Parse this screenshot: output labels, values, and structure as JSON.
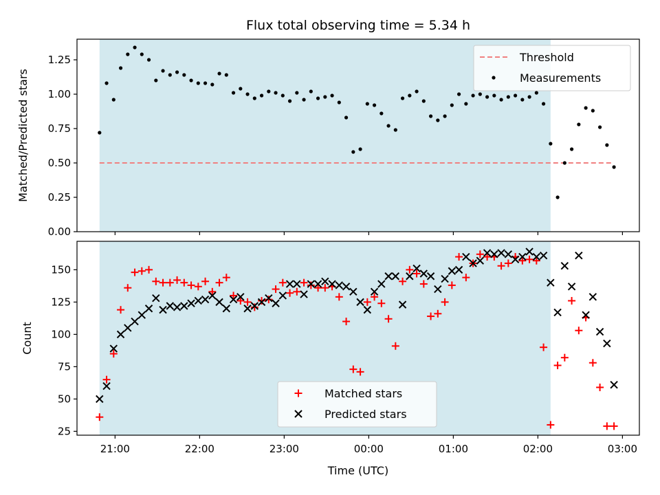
{
  "chart_data": [
    {
      "type": "scatter",
      "title": "Flux total observing time = 5.34 h",
      "xlabel": "",
      "ylabel": "Matched/Predicted stars",
      "xlim": [
        "20:33",
        "03:12"
      ],
      "ylim": [
        0.0,
        1.4
      ],
      "yticks": [
        "0.00",
        "0.25",
        "0.50",
        "0.75",
        "1.00",
        "1.25"
      ],
      "legend_position": "top-right",
      "observing_window": {
        "start": "20:49",
        "end": "02:09",
        "color": "#d3e9ef"
      },
      "threshold": {
        "name": "Threshold",
        "value": 0.5,
        "color": "#f08080",
        "x_start": "20:49",
        "x_end": "02:53"
      },
      "series": [
        {
          "name": "Measurements",
          "color": "#000000",
          "marker": "dot",
          "x": [
            "20:49",
            "20:54",
            "20:59",
            "21:04",
            "21:09",
            "21:14",
            "21:19",
            "21:24",
            "21:29",
            "21:34",
            "21:39",
            "21:44",
            "21:49",
            "21:54",
            "21:59",
            "22:04",
            "22:09",
            "22:14",
            "22:19",
            "22:24",
            "22:29",
            "22:34",
            "22:39",
            "22:44",
            "22:49",
            "22:54",
            "22:59",
            "23:04",
            "23:09",
            "23:14",
            "23:19",
            "23:24",
            "23:29",
            "23:34",
            "23:39",
            "23:44",
            "23:49",
            "23:54",
            "23:59",
            "00:04",
            "00:09",
            "00:14",
            "00:19",
            "00:24",
            "00:29",
            "00:34",
            "00:39",
            "00:44",
            "00:49",
            "00:54",
            "00:59",
            "01:04",
            "01:09",
            "01:14",
            "01:19",
            "01:24",
            "01:29",
            "01:34",
            "01:39",
            "01:44",
            "01:49",
            "01:54",
            "01:59",
            "02:04",
            "02:09",
            "02:14",
            "02:19",
            "02:24",
            "02:29",
            "02:34",
            "02:39",
            "02:44",
            "02:49",
            "02:54"
          ],
          "values": [
            0.72,
            1.08,
            0.96,
            1.19,
            1.29,
            1.34,
            1.29,
            1.25,
            1.1,
            1.17,
            1.14,
            1.16,
            1.14,
            1.1,
            1.08,
            1.08,
            1.07,
            1.15,
            1.14,
            1.01,
            1.04,
            1.0,
            0.97,
            0.99,
            1.02,
            1.01,
            0.99,
            0.95,
            1.01,
            0.96,
            1.02,
            0.97,
            0.98,
            0.99,
            0.94,
            0.83,
            0.58,
            0.6,
            0.93,
            0.92,
            0.86,
            0.77,
            0.74,
            0.97,
            0.99,
            1.02,
            0.95,
            0.84,
            0.81,
            0.84,
            0.92,
            1.0,
            0.93,
            0.99,
            1.0,
            0.98,
            0.99,
            0.96,
            0.98,
            0.99,
            0.96,
            0.98,
            1.01,
            0.93,
            0.64,
            0.25,
            0.5,
            0.6,
            0.78,
            0.9,
            0.88,
            0.76,
            0.63,
            0.47
          ]
        }
      ]
    },
    {
      "type": "scatter",
      "title": "",
      "xlabel": "Time (UTC)",
      "ylabel": "Count",
      "xlim": [
        "20:33",
        "03:12"
      ],
      "ylim": [
        22,
        172
      ],
      "yticks": [
        "25",
        "50",
        "75",
        "100",
        "125",
        "150"
      ],
      "xticks": [
        "21:00",
        "22:00",
        "23:00",
        "00:00",
        "01:00",
        "02:00",
        "03:00"
      ],
      "legend_position": "lower-center",
      "observing_window": {
        "start": "20:49",
        "end": "02:09",
        "color": "#d3e9ef"
      },
      "series": [
        {
          "name": "Matched stars",
          "color": "#ff0000",
          "marker": "plus",
          "x": [
            "20:49",
            "20:54",
            "20:59",
            "21:04",
            "21:09",
            "21:14",
            "21:19",
            "21:24",
            "21:29",
            "21:34",
            "21:39",
            "21:44",
            "21:49",
            "21:54",
            "21:59",
            "22:04",
            "22:09",
            "22:14",
            "22:19",
            "22:24",
            "22:29",
            "22:34",
            "22:39",
            "22:44",
            "22:49",
            "22:54",
            "22:59",
            "23:04",
            "23:09",
            "23:14",
            "23:19",
            "23:24",
            "23:29",
            "23:34",
            "23:39",
            "23:44",
            "23:49",
            "23:54",
            "23:59",
            "00:04",
            "00:09",
            "00:14",
            "00:19",
            "00:24",
            "00:29",
            "00:34",
            "00:39",
            "00:44",
            "00:49",
            "00:54",
            "00:59",
            "01:04",
            "01:09",
            "01:14",
            "01:19",
            "01:24",
            "01:29",
            "01:34",
            "01:39",
            "01:44",
            "01:49",
            "01:54",
            "01:59",
            "02:04",
            "02:09",
            "02:14",
            "02:19",
            "02:24",
            "02:29",
            "02:34",
            "02:39",
            "02:44",
            "02:49",
            "02:54"
          ],
          "values": [
            36,
            65,
            85,
            119,
            136,
            148,
            149,
            150,
            141,
            140,
            140,
            142,
            140,
            138,
            137,
            141,
            133,
            140,
            144,
            130,
            126,
            125,
            121,
            126,
            127,
            135,
            140,
            132,
            133,
            140,
            138,
            136,
            136,
            137,
            129,
            110,
            73,
            71,
            125,
            129,
            124,
            112,
            91,
            141,
            150,
            147,
            139,
            114,
            116,
            125,
            138,
            160,
            144,
            155,
            162,
            160,
            160,
            153,
            155,
            160,
            157,
            158,
            157,
            90,
            30,
            76,
            82,
            126,
            103,
            113,
            78,
            59,
            29,
            29
          ]
        },
        {
          "name": "Predicted stars",
          "color": "#000000",
          "marker": "x",
          "x": [
            "20:49",
            "20:54",
            "20:59",
            "21:04",
            "21:09",
            "21:14",
            "21:19",
            "21:24",
            "21:29",
            "21:34",
            "21:39",
            "21:44",
            "21:49",
            "21:54",
            "21:59",
            "22:04",
            "22:09",
            "22:14",
            "22:19",
            "22:24",
            "22:29",
            "22:34",
            "22:39",
            "22:44",
            "22:49",
            "22:54",
            "22:59",
            "23:04",
            "23:09",
            "23:14",
            "23:19",
            "23:24",
            "23:29",
            "23:34",
            "23:39",
            "23:44",
            "23:49",
            "23:54",
            "23:59",
            "00:04",
            "00:09",
            "00:14",
            "00:19",
            "00:24",
            "00:29",
            "00:34",
            "00:39",
            "00:44",
            "00:49",
            "00:54",
            "00:59",
            "01:04",
            "01:09",
            "01:14",
            "01:19",
            "01:24",
            "01:29",
            "01:34",
            "01:39",
            "01:44",
            "01:49",
            "01:54",
            "01:59",
            "02:04",
            "02:09",
            "02:14",
            "02:19",
            "02:24",
            "02:29",
            "02:34",
            "02:39",
            "02:44",
            "02:49",
            "02:54"
          ],
          "values": [
            50,
            60,
            89,
            100,
            105,
            110,
            115,
            120,
            128,
            119,
            122,
            121,
            122,
            124,
            126,
            127,
            130,
            125,
            120,
            127,
            129,
            120,
            122,
            125,
            128,
            124,
            130,
            139,
            139,
            131,
            139,
            139,
            141,
            139,
            138,
            137,
            133,
            125,
            119,
            133,
            139,
            145,
            145,
            123,
            145,
            151,
            147,
            145,
            135,
            143,
            149,
            150,
            160,
            155,
            157,
            163,
            162,
            163,
            162,
            158,
            160,
            164,
            160,
            161,
            140,
            117,
            153,
            137,
            161,
            115,
            129,
            102,
            93,
            61
          ]
        }
      ]
    }
  ]
}
